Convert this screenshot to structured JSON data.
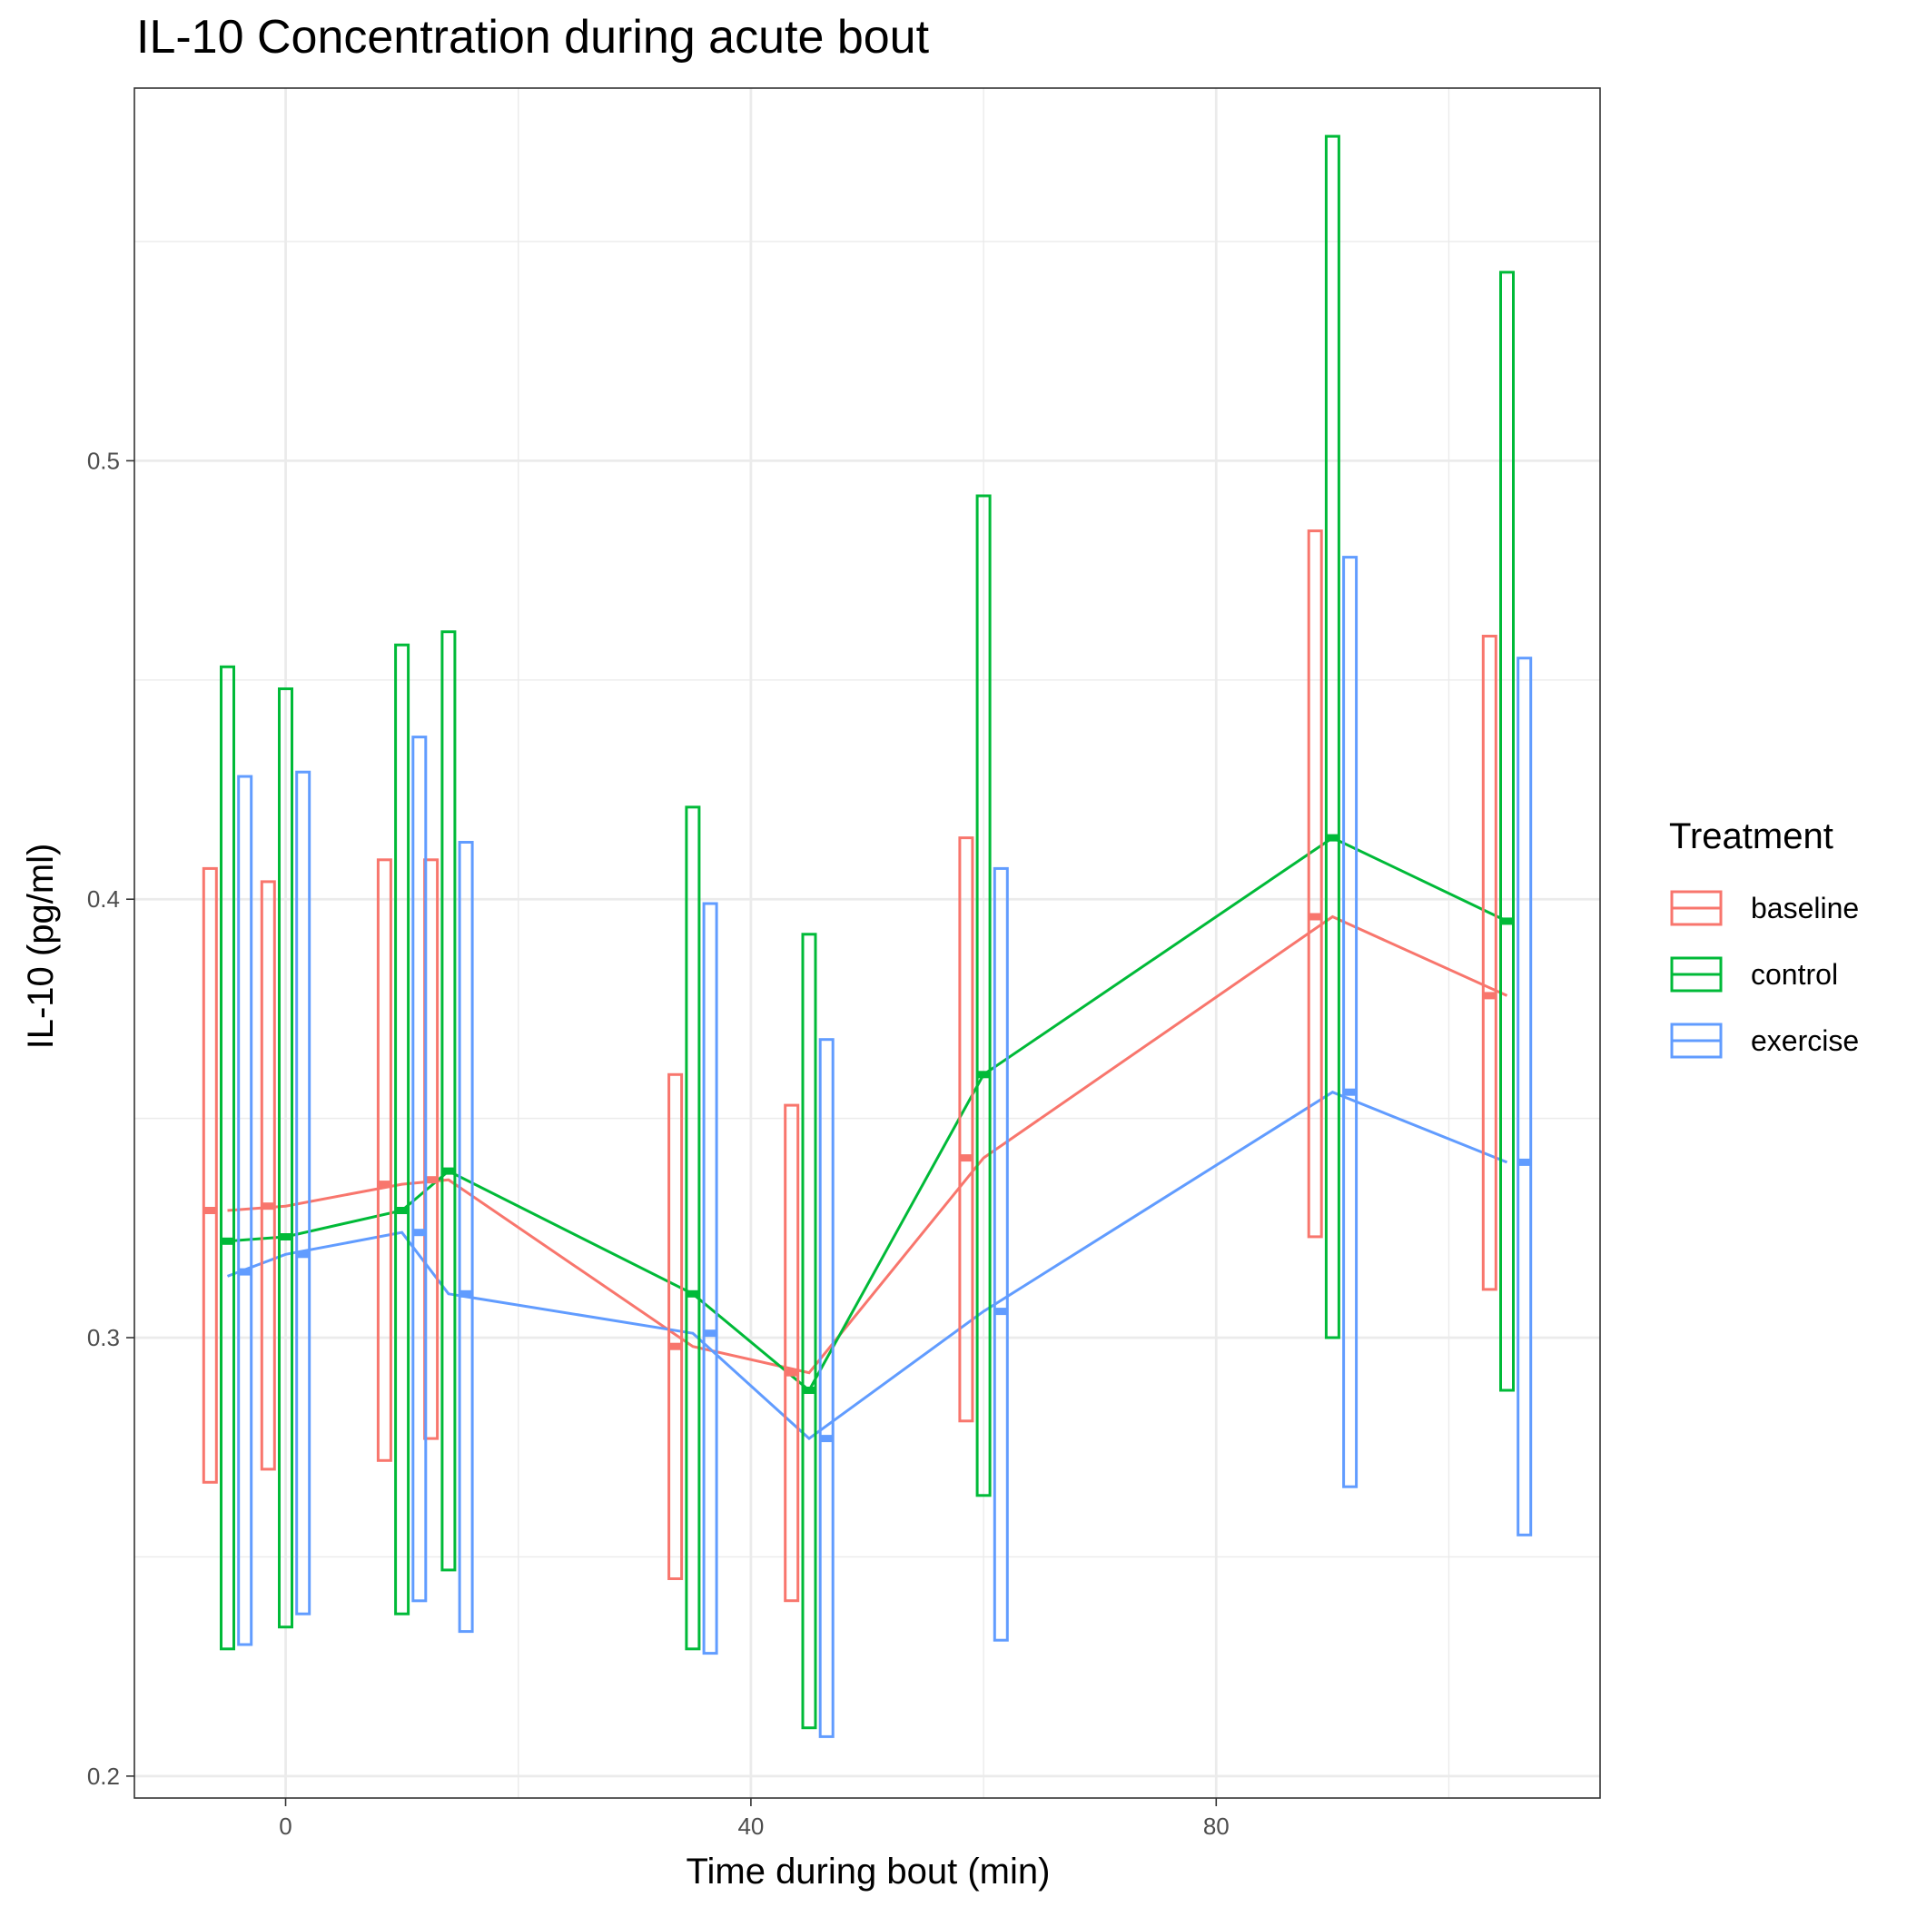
{
  "chart_data": {
    "type": "line",
    "title": "IL-10 Concentration during acute bout",
    "xlabel": "Time during bout (min)",
    "ylabel": "IL-10 (pg/ml)",
    "xlim": [
      -13,
      113
    ],
    "ylim": [
      0.195,
      0.585
    ],
    "x_ticks": [
      0,
      40,
      80
    ],
    "x_tick_labels": [
      "0",
      "40",
      "80"
    ],
    "y_ticks": [
      0.2,
      0.3,
      0.4,
      0.5
    ],
    "y_tick_labels": [
      "0.2",
      "0.3",
      "0.4",
      "0.5"
    ],
    "x_minor_ticks": [
      20,
      60,
      100
    ],
    "y_minor_ticks": [
      0.25,
      0.35,
      0.45,
      0.55
    ],
    "grid": true,
    "legend": {
      "title": "Treatment",
      "position": "right"
    },
    "series": [
      {
        "name": "baseline",
        "color": "#F8766D",
        "x": [
          -5,
          10,
          45,
          60,
          90,
          105
        ],
        "points": [
          {
            "x": -6.5,
            "y": 0.329,
            "ymin": 0.267,
            "ymax": 0.407
          },
          {
            "x": -1.5,
            "y": 0.33,
            "ymin": 0.27,
            "ymax": 0.404
          },
          {
            "x": 8.5,
            "y": 0.335,
            "ymin": 0.272,
            "ymax": 0.409
          },
          {
            "x": 12.5,
            "y": 0.336,
            "ymin": 0.277,
            "ymax": 0.409
          },
          {
            "x": 33.5,
            "y": 0.298,
            "ymin": 0.245,
            "ymax": 0.36
          },
          {
            "x": 43.5,
            "y": 0.292,
            "ymin": 0.24,
            "ymax": 0.353
          },
          {
            "x": 58.5,
            "y": 0.341,
            "ymin": 0.281,
            "ymax": 0.414
          },
          {
            "x": 88.5,
            "y": 0.396,
            "ymin": 0.323,
            "ymax": 0.484
          },
          {
            "x": 103.5,
            "y": 0.378,
            "ymin": 0.311,
            "ymax": 0.46
          }
        ],
        "line": [
          {
            "x": -5,
            "y": 0.329
          },
          {
            "x": 0,
            "y": 0.33
          },
          {
            "x": 10,
            "y": 0.335
          },
          {
            "x": 14,
            "y": 0.336
          },
          {
            "x": 35,
            "y": 0.298
          },
          {
            "x": 45,
            "y": 0.292
          },
          {
            "x": 60,
            "y": 0.341
          },
          {
            "x": 90,
            "y": 0.396
          },
          {
            "x": 105,
            "y": 0.378
          }
        ]
      },
      {
        "name": "control",
        "color": "#00BA38",
        "points": [
          {
            "x": -5,
            "y": 0.322,
            "ymin": 0.229,
            "ymax": 0.453
          },
          {
            "x": 0,
            "y": 0.323,
            "ymin": 0.234,
            "ymax": 0.448
          },
          {
            "x": 10,
            "y": 0.329,
            "ymin": 0.237,
            "ymax": 0.458
          },
          {
            "x": 14,
            "y": 0.338,
            "ymin": 0.247,
            "ymax": 0.461
          },
          {
            "x": 35,
            "y": 0.31,
            "ymin": 0.229,
            "ymax": 0.421
          },
          {
            "x": 45,
            "y": 0.288,
            "ymin": 0.211,
            "ymax": 0.392
          },
          {
            "x": 60,
            "y": 0.36,
            "ymin": 0.264,
            "ymax": 0.492
          },
          {
            "x": 90,
            "y": 0.414,
            "ymin": 0.3,
            "ymax": 0.574
          },
          {
            "x": 105,
            "y": 0.395,
            "ymin": 0.288,
            "ymax": 0.543
          }
        ],
        "line": [
          {
            "x": -5,
            "y": 0.322
          },
          {
            "x": 0,
            "y": 0.323
          },
          {
            "x": 10,
            "y": 0.329
          },
          {
            "x": 14,
            "y": 0.338
          },
          {
            "x": 35,
            "y": 0.31
          },
          {
            "x": 45,
            "y": 0.288
          },
          {
            "x": 60,
            "y": 0.36
          },
          {
            "x": 90,
            "y": 0.414
          },
          {
            "x": 105,
            "y": 0.395
          }
        ]
      },
      {
        "name": "exercise",
        "color": "#619CFF",
        "points": [
          {
            "x": -3.5,
            "y": 0.315,
            "ymin": 0.23,
            "ymax": 0.428
          },
          {
            "x": 1.5,
            "y": 0.319,
            "ymin": 0.237,
            "ymax": 0.429
          },
          {
            "x": 11.5,
            "y": 0.324,
            "ymin": 0.24,
            "ymax": 0.437
          },
          {
            "x": 15.5,
            "y": 0.31,
            "ymin": 0.233,
            "ymax": 0.413
          },
          {
            "x": 36.5,
            "y": 0.301,
            "ymin": 0.228,
            "ymax": 0.399
          },
          {
            "x": 46.5,
            "y": 0.277,
            "ymin": 0.209,
            "ymax": 0.368
          },
          {
            "x": 61.5,
            "y": 0.306,
            "ymin": 0.231,
            "ymax": 0.407
          },
          {
            "x": 91.5,
            "y": 0.356,
            "ymin": 0.266,
            "ymax": 0.478
          },
          {
            "x": 106.5,
            "y": 0.34,
            "ymin": 0.255,
            "ymax": 0.455
          }
        ],
        "line": [
          {
            "x": -5,
            "y": 0.314
          },
          {
            "x": 0,
            "y": 0.319
          },
          {
            "x": 10,
            "y": 0.324
          },
          {
            "x": 14,
            "y": 0.31
          },
          {
            "x": 35,
            "y": 0.301
          },
          {
            "x": 45,
            "y": 0.277
          },
          {
            "x": 60,
            "y": 0.306
          },
          {
            "x": 90,
            "y": 0.356
          },
          {
            "x": 105,
            "y": 0.34
          }
        ]
      }
    ]
  }
}
